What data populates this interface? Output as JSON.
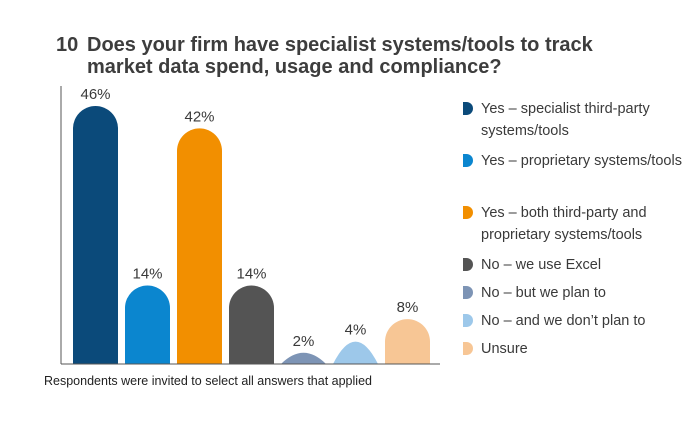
{
  "title": {
    "number": "10",
    "question": "Does your firm have specialist systems/tools to track market data spend, usage and compliance?"
  },
  "footnote": "Respondents were invited to select all answers that applied",
  "chart_data": {
    "type": "bar",
    "categories": [
      "Yes – specialist third-party systems/tools",
      "Yes – proprietary systems/tools",
      "Yes – both third-party and proprietary systems/tools",
      "No – we use Excel",
      "No – but we plan to",
      "No – and we don’t plan to",
      "Unsure"
    ],
    "values": [
      46,
      14,
      42,
      14,
      2,
      4,
      8
    ],
    "value_labels": [
      "46%",
      "14%",
      "42%",
      "14%",
      "2%",
      "4%",
      "8%"
    ],
    "colors": [
      "#0b4a7a",
      "#0b86cf",
      "#f28f00",
      "#545454",
      "#7d94b5",
      "#9dc8ea",
      "#f7c695"
    ],
    "ylim": [
      0,
      48
    ],
    "grid": false,
    "legend_position": "right"
  }
}
